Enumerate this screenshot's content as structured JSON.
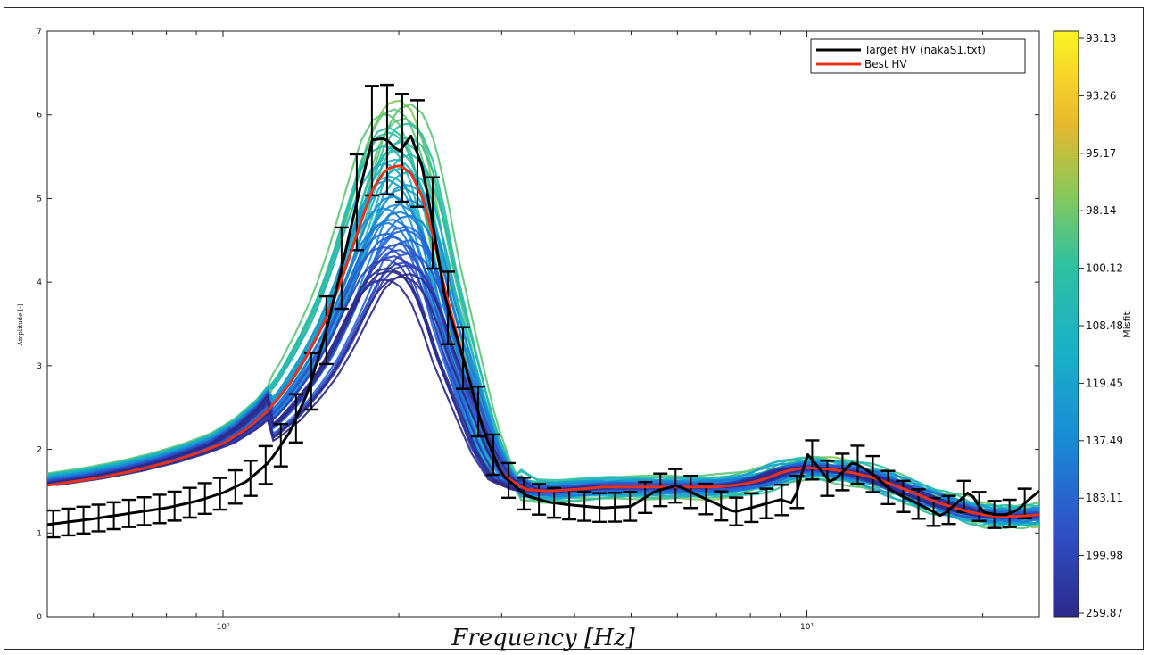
{
  "chart_data": {
    "type": "line",
    "xlabel": "Frequency [Hz]",
    "ylabel": "Amplitude [-]",
    "xscale": "log",
    "xlim": [
      0.5,
      25
    ],
    "ylim": [
      0,
      7
    ],
    "yticks": [
      "0",
      "1",
      "2",
      "3",
      "4",
      "5",
      "6",
      "7"
    ],
    "xticks": [
      {
        "value": 1,
        "label": "10⁰"
      },
      {
        "value": 10,
        "label": "10¹"
      }
    ],
    "legend": {
      "position": "top-right",
      "entries": [
        {
          "label": "Target HV (nakaS1.txt)",
          "color": "#000000"
        },
        {
          "label": "Best HV",
          "color": "#e8321e"
        }
      ]
    },
    "colorbar": {
      "label": "Misfit",
      "ticks": [
        "93.13",
        "93.26",
        "95.17",
        "98.14",
        "100.12",
        "108.48",
        "119.45",
        "137.49",
        "183.11",
        "199.98",
        "259.87"
      ]
    },
    "series": [
      {
        "name": "Target HV (nakaS1.txt)",
        "color": "#000000",
        "x": [
          0.5,
          0.6,
          0.7,
          0.8,
          0.9,
          1.0,
          1.1,
          1.2,
          1.3,
          1.4,
          1.5,
          1.6,
          1.7,
          1.8,
          1.9,
          2.0,
          2.1,
          2.2,
          2.3,
          2.4,
          2.6,
          2.8,
          3.0,
          3.3,
          3.6,
          4.0,
          4.5,
          5.0,
          5.5,
          6.0,
          6.5,
          7.0,
          7.5,
          8.0,
          8.5,
          9.0,
          9.5,
          10.0,
          11.0,
          12.0,
          13.0,
          14.0,
          15.0,
          16.0,
          17.0,
          18.0,
          19.0,
          20.0,
          21.0,
          22.0,
          23.0,
          24.0,
          25.0
        ],
        "y": [
          1.1,
          1.17,
          1.24,
          1.3,
          1.38,
          1.48,
          1.62,
          1.85,
          2.2,
          2.7,
          3.4,
          4.2,
          5.0,
          5.7,
          5.72,
          5.55,
          5.75,
          5.35,
          4.6,
          3.8,
          3.0,
          2.2,
          1.7,
          1.45,
          1.37,
          1.33,
          1.3,
          1.32,
          1.5,
          1.57,
          1.45,
          1.35,
          1.25,
          1.3,
          1.35,
          1.4,
          1.35,
          1.95,
          1.6,
          1.85,
          1.7,
          1.5,
          1.4,
          1.3,
          1.2,
          1.35,
          1.5,
          1.25,
          1.22,
          1.22,
          1.28,
          1.4,
          1.5
        ]
      },
      {
        "name": "Best HV",
        "color": "#e8321e",
        "x": [
          0.5,
          0.6,
          0.7,
          0.8,
          0.9,
          1.0,
          1.1,
          1.2,
          1.3,
          1.4,
          1.5,
          1.6,
          1.7,
          1.8,
          1.9,
          2.0,
          2.1,
          2.2,
          2.3,
          2.4,
          2.6,
          2.8,
          3.0,
          3.3,
          3.6,
          4.0,
          4.5,
          5.0,
          5.5,
          6.0,
          6.5,
          7.0,
          7.5,
          8.0,
          8.5,
          9.0,
          9.5,
          10.0,
          11.0,
          12.0,
          13.0,
          14.0,
          15.0,
          16.0,
          17.0,
          18.0,
          19.0,
          20.0,
          21.0,
          22.0,
          23.0,
          24.0,
          25.0
        ],
        "y": [
          1.57,
          1.65,
          1.74,
          1.84,
          1.95,
          2.07,
          2.25,
          2.48,
          2.78,
          3.15,
          3.55,
          4.05,
          4.6,
          5.1,
          5.35,
          5.4,
          5.3,
          5.0,
          4.5,
          3.9,
          3.0,
          2.2,
          1.7,
          1.52,
          1.5,
          1.52,
          1.55,
          1.55,
          1.55,
          1.55,
          1.55,
          1.55,
          1.57,
          1.6,
          1.65,
          1.72,
          1.76,
          1.78,
          1.76,
          1.72,
          1.66,
          1.58,
          1.5,
          1.42,
          1.35,
          1.3,
          1.25,
          1.22,
          1.2,
          1.2,
          1.2,
          1.21,
          1.22
        ]
      }
    ]
  }
}
